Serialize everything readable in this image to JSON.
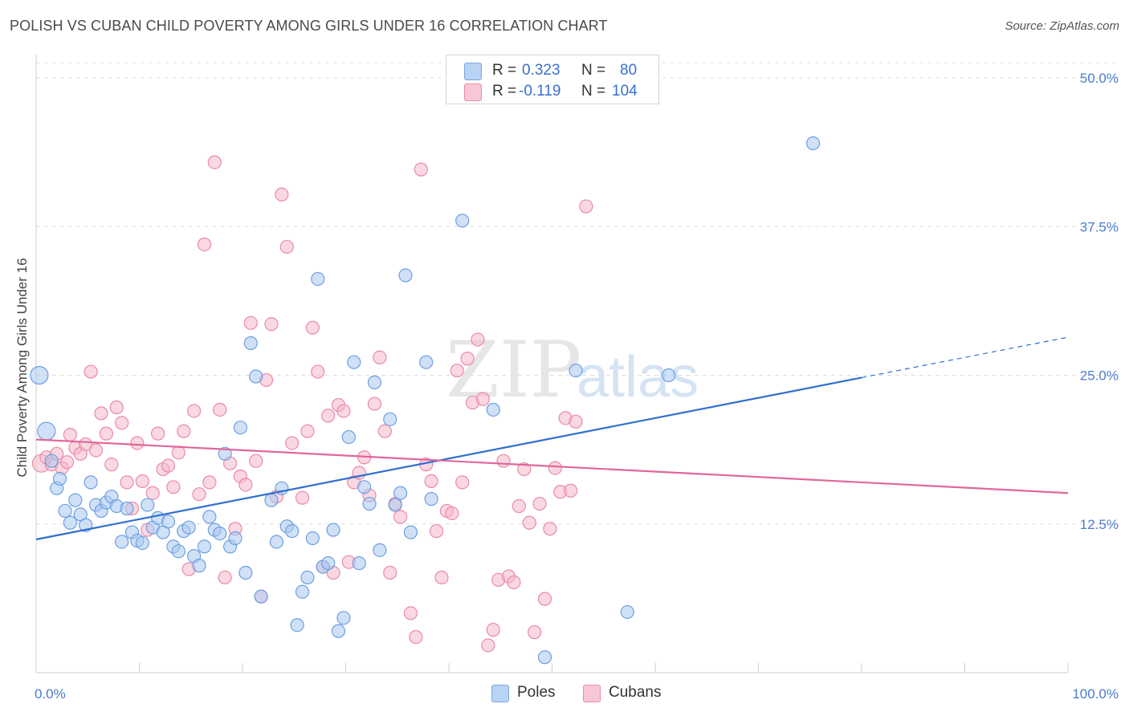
{
  "header": {
    "title": "POLISH VS CUBAN CHILD POVERTY AMONG GIRLS UNDER 16 CORRELATION CHART",
    "source": "Source: ZipAtlas.com"
  },
  "watermark": {
    "zip": "ZIP",
    "atlas": "atlas"
  },
  "legend": {
    "r_label": "R =",
    "n_label": "N =",
    "entries": [
      {
        "r_value": "0.323",
        "n_value": "80"
      },
      {
        "r_value": "-0.119",
        "n_value": "104"
      }
    ]
  },
  "colors": {
    "poles_fill": "#a9c8f0",
    "poles_stroke": "#6d9fe0",
    "poles_line": "#2f6fd0",
    "cubans_fill": "#f5b8cb",
    "cubans_stroke": "#e98aa8",
    "cubans_line": "#e0679a",
    "grid": "#dddddd",
    "tick_text": "#4a7bd0"
  },
  "chart_data": {
    "type": "scatter",
    "ylabel": "Child Poverty Among Girls Under 16",
    "xlim": [
      0,
      100
    ],
    "ylim": [
      0,
      50
    ],
    "x_tick_labels": [
      {
        "value": 0,
        "label": "0.0%"
      },
      {
        "value": 100,
        "label": "100.0%"
      }
    ],
    "y_ticks": [
      {
        "value": 12.5,
        "label": "12.5%"
      },
      {
        "value": 25,
        "label": "25.0%"
      },
      {
        "value": 37.5,
        "label": "37.5%"
      },
      {
        "value": 50,
        "label": "50.0%"
      }
    ],
    "grid": "horizontal dashed",
    "legend_position": "bottom-center",
    "series": [
      {
        "name": "Poles",
        "r": 0.323,
        "n": 80,
        "trend": {
          "x0": 0,
          "y0": 11.2,
          "x1": 80,
          "y1": 24.8,
          "dashed_to_x": 100,
          "dashed_to_y": 28.2
        },
        "points": [
          [
            0.3,
            25.0
          ],
          [
            1,
            20.3
          ],
          [
            1.5,
            17.8
          ],
          [
            2,
            15.5
          ],
          [
            2.3,
            16.3
          ],
          [
            2.8,
            13.6
          ],
          [
            3.3,
            12.6
          ],
          [
            3.8,
            14.5
          ],
          [
            4.3,
            13.3
          ],
          [
            4.8,
            12.4
          ],
          [
            5.3,
            16.0
          ],
          [
            5.8,
            14.1
          ],
          [
            6.3,
            13.6
          ],
          [
            6.8,
            14.3
          ],
          [
            7.3,
            14.8
          ],
          [
            7.8,
            14.0
          ],
          [
            8.3,
            11.0
          ],
          [
            8.8,
            13.8
          ],
          [
            9.3,
            11.8
          ],
          [
            9.8,
            11.1
          ],
          [
            10.3,
            10.9
          ],
          [
            10.8,
            14.1
          ],
          [
            11.3,
            12.2
          ],
          [
            11.8,
            13.0
          ],
          [
            12.3,
            11.8
          ],
          [
            12.8,
            12.7
          ],
          [
            13.3,
            10.6
          ],
          [
            13.8,
            10.2
          ],
          [
            14.3,
            11.9
          ],
          [
            14.8,
            12.2
          ],
          [
            15.3,
            9.8
          ],
          [
            15.8,
            9.0
          ],
          [
            16.3,
            10.6
          ],
          [
            16.8,
            13.1
          ],
          [
            17.3,
            12.0
          ],
          [
            17.8,
            11.7
          ],
          [
            18.3,
            18.4
          ],
          [
            18.8,
            10.6
          ],
          [
            19.3,
            11.3
          ],
          [
            19.8,
            20.6
          ],
          [
            20.3,
            8.4
          ],
          [
            20.8,
            27.7
          ],
          [
            21.3,
            24.9
          ],
          [
            21.8,
            6.4
          ],
          [
            22.8,
            14.5
          ],
          [
            23.3,
            11.0
          ],
          [
            23.8,
            15.5
          ],
          [
            24.3,
            12.3
          ],
          [
            24.8,
            11.9
          ],
          [
            25.3,
            4.0
          ],
          [
            25.8,
            6.8
          ],
          [
            26.3,
            8.0
          ],
          [
            26.8,
            11.3
          ],
          [
            27.3,
            33.1
          ],
          [
            27.8,
            8.9
          ],
          [
            28.3,
            9.2
          ],
          [
            28.8,
            12.0
          ],
          [
            29.3,
            3.5
          ],
          [
            29.8,
            4.6
          ],
          [
            30.3,
            19.8
          ],
          [
            30.8,
            26.1
          ],
          [
            31.3,
            9.2
          ],
          [
            31.8,
            15.6
          ],
          [
            32.3,
            14.2
          ],
          [
            32.8,
            24.4
          ],
          [
            33.3,
            10.3
          ],
          [
            34.3,
            21.3
          ],
          [
            34.8,
            14.1
          ],
          [
            35.3,
            15.1
          ],
          [
            35.8,
            33.4
          ],
          [
            36.3,
            11.8
          ],
          [
            37.8,
            26.1
          ],
          [
            38.3,
            14.6
          ],
          [
            41.3,
            38.0
          ],
          [
            44.3,
            22.1
          ],
          [
            49.3,
            1.3
          ],
          [
            52.3,
            25.4
          ],
          [
            57.3,
            5.1
          ],
          [
            61.3,
            25.0
          ],
          [
            75.3,
            44.5
          ]
        ]
      },
      {
        "name": "Cubans",
        "r": -0.119,
        "n": 104,
        "trend": {
          "x0": 0,
          "y0": 19.6,
          "x1": 100,
          "y1": 15.1
        },
        "points": [
          [
            0.5,
            17.6
          ],
          [
            1,
            18.1
          ],
          [
            1.5,
            17.5
          ],
          [
            2,
            18.4
          ],
          [
            2.5,
            17.2
          ],
          [
            3,
            17.7
          ],
          [
            3.3,
            20.0
          ],
          [
            3.8,
            18.9
          ],
          [
            4.3,
            18.4
          ],
          [
            4.8,
            19.2
          ],
          [
            5.3,
            25.3
          ],
          [
            5.8,
            18.7
          ],
          [
            6.3,
            21.8
          ],
          [
            6.8,
            20.1
          ],
          [
            7.3,
            17.5
          ],
          [
            7.8,
            22.3
          ],
          [
            8.3,
            21.0
          ],
          [
            8.8,
            16.0
          ],
          [
            9.3,
            13.8
          ],
          [
            9.8,
            19.3
          ],
          [
            10.3,
            16.1
          ],
          [
            10.8,
            12.0
          ],
          [
            11.3,
            15.1
          ],
          [
            11.8,
            20.1
          ],
          [
            12.3,
            17.1
          ],
          [
            12.8,
            17.4
          ],
          [
            13.3,
            15.6
          ],
          [
            13.8,
            18.5
          ],
          [
            14.3,
            20.3
          ],
          [
            14.8,
            8.7
          ],
          [
            15.3,
            22.0
          ],
          [
            15.8,
            15.0
          ],
          [
            16.3,
            36.0
          ],
          [
            16.8,
            16.0
          ],
          [
            17.3,
            42.9
          ],
          [
            17.8,
            22.1
          ],
          [
            18.3,
            8.0
          ],
          [
            18.8,
            17.6
          ],
          [
            19.3,
            12.1
          ],
          [
            19.8,
            16.5
          ],
          [
            20.3,
            15.8
          ],
          [
            20.8,
            29.4
          ],
          [
            21.3,
            17.8
          ],
          [
            21.8,
            6.4
          ],
          [
            22.3,
            24.6
          ],
          [
            22.8,
            29.3
          ],
          [
            23.3,
            14.8
          ],
          [
            23.8,
            40.2
          ],
          [
            24.3,
            35.8
          ],
          [
            24.8,
            19.3
          ],
          [
            25.8,
            14.7
          ],
          [
            26.3,
            20.3
          ],
          [
            26.8,
            29.0
          ],
          [
            27.3,
            25.3
          ],
          [
            27.8,
            8.9
          ],
          [
            28.3,
            21.6
          ],
          [
            28.8,
            8.4
          ],
          [
            29.3,
            22.5
          ],
          [
            29.8,
            22.0
          ],
          [
            30.3,
            9.3
          ],
          [
            30.8,
            16.0
          ],
          [
            31.3,
            16.8
          ],
          [
            31.8,
            18.1
          ],
          [
            32.3,
            14.9
          ],
          [
            32.8,
            22.6
          ],
          [
            33.3,
            26.5
          ],
          [
            33.8,
            20.3
          ],
          [
            34.3,
            8.4
          ],
          [
            34.8,
            14.2
          ],
          [
            35.3,
            13.1
          ],
          [
            36.3,
            5.0
          ],
          [
            36.8,
            3.0
          ],
          [
            37.3,
            42.3
          ],
          [
            37.8,
            17.5
          ],
          [
            38.3,
            16.1
          ],
          [
            38.8,
            11.9
          ],
          [
            39.3,
            8.0
          ],
          [
            39.8,
            13.6
          ],
          [
            40.3,
            13.4
          ],
          [
            40.8,
            25.4
          ],
          [
            41.3,
            16.0
          ],
          [
            41.8,
            26.4
          ],
          [
            42.3,
            22.7
          ],
          [
            42.8,
            28.0
          ],
          [
            43.3,
            23.0
          ],
          [
            43.8,
            2.3
          ],
          [
            44.3,
            3.6
          ],
          [
            44.8,
            7.8
          ],
          [
            45.3,
            17.8
          ],
          [
            45.8,
            8.1
          ],
          [
            46.3,
            7.6
          ],
          [
            46.8,
            14.0
          ],
          [
            47.3,
            17.1
          ],
          [
            47.8,
            12.6
          ],
          [
            48.3,
            3.4
          ],
          [
            48.8,
            14.2
          ],
          [
            49.3,
            6.2
          ],
          [
            49.8,
            12.1
          ],
          [
            50.3,
            17.2
          ],
          [
            50.8,
            15.2
          ],
          [
            51.3,
            21.4
          ],
          [
            51.8,
            15.3
          ],
          [
            52.3,
            21.1
          ],
          [
            53.3,
            39.2
          ]
        ]
      }
    ]
  }
}
